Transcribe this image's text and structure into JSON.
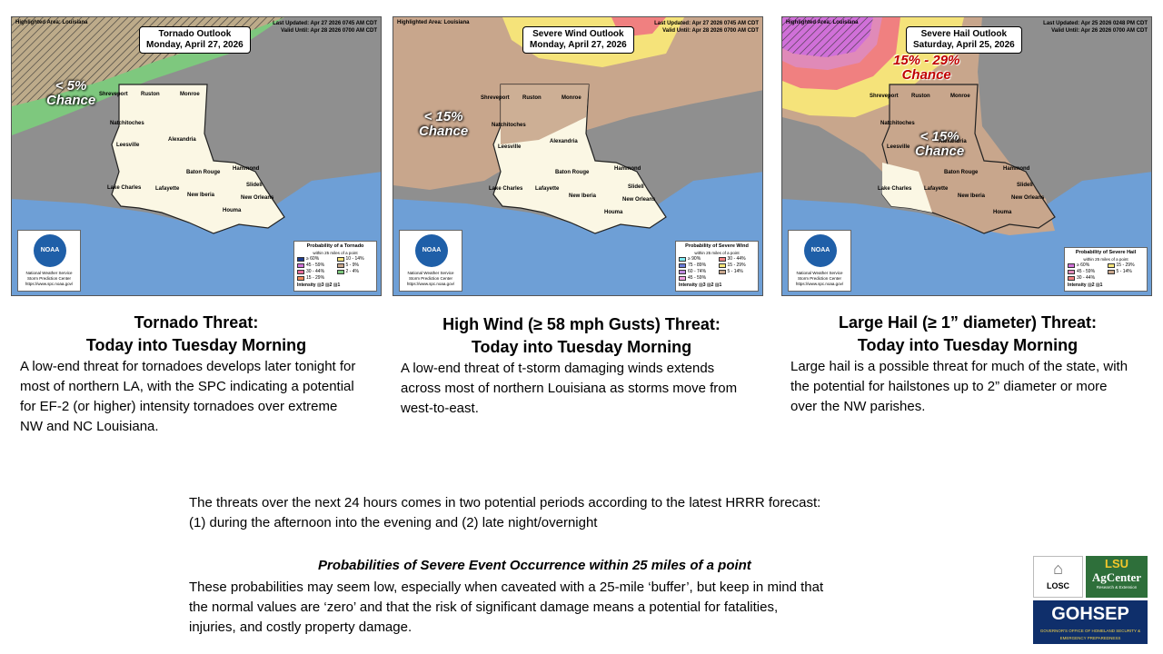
{
  "maps": {
    "tornado": {
      "highlighted": "Highlighted Area: Louisiana",
      "updated": "Last Updated: Apr 27 2026 0745 AM CDT",
      "valid": "Valid Until: Apr 28 2026 0700 AM CDT",
      "title1": "Tornado Outlook",
      "title2": "Monday, April 27, 2026",
      "chance1": "< 5%",
      "chance2": "Chance",
      "legend_title": "Probability of a Tornado",
      "legend_sub": "within 25 miles of a point",
      "legend_items": [
        "≥ 60%",
        "10 - 14%",
        "45 - 59%",
        "5 - 9%",
        "30 - 44%",
        "2 - 4%",
        "15 - 29%"
      ],
      "intensity_label": "Intensity",
      "intensity_values": [
        "1",
        "2",
        "3"
      ]
    },
    "wind": {
      "highlighted": "Highlighted Area: Louisiana",
      "updated": "Last Updated: Apr 27 2026 0745 AM CDT",
      "valid": "Valid Until: Apr 28 2026 0700 AM CDT",
      "title1": "Severe Wind Outlook",
      "title2": "Monday, April 27, 2026",
      "chance1": "< 15%",
      "chance2": "Chance",
      "legend_title": "Probability of Severe Wind",
      "legend_sub": "within 25 miles of a point",
      "legend_items": [
        "≥ 90%",
        "30 - 44%",
        "75 - 89%",
        "15 - 29%",
        "60 - 74%",
        "5 - 14%",
        "45 - 59%"
      ],
      "intensity_label": "Intensity",
      "intensity_values": [
        "1",
        "2",
        "3"
      ]
    },
    "hail": {
      "highlighted": "Highlighted Area: Louisiana",
      "updated": "Last Updated: Apr 25 2026 0248 PM CDT",
      "valid": "Valid Until: Apr 26 2026 0700 AM CDT",
      "title1": "Severe Hail Outlook",
      "title2": "Saturday, April 25, 2026",
      "chance_high1": "15% - 29%",
      "chance_high2": "Chance",
      "chance1": "< 15%",
      "chance2": "Chance",
      "legend_title": "Probability of Severe Hail",
      "legend_sub": "within 25 miles of a point",
      "legend_items": [
        "≥ 60%",
        "15 - 29%",
        "45 - 59%",
        "5 - 14%",
        "30 - 44%"
      ],
      "intensity_label": "Intensity",
      "intensity_values": [
        "1",
        "2"
      ]
    },
    "cities": {
      "shreveport": "Shreveport",
      "ruston": "Ruston",
      "monroe": "Monroe",
      "natchitoches": "Natchitoches",
      "leesville": "Leesville",
      "alexandria": "Alexandria",
      "batonrouge": "Baton Rouge",
      "hammond": "Hammond",
      "lakecharles": "Lake Charles",
      "lafayette": "Lafayette",
      "newiberia": "New Iberia",
      "slidell": "Slidell",
      "neworleans": "New Orleans",
      "houma": "Houma"
    },
    "noaa": "NOAA",
    "nws1": "National Weather Service",
    "nws2": "Storm Prediction Center",
    "nws3": "https://www.spc.noaa.gov/"
  },
  "sections": [
    {
      "heading1": "Tornado Threat:",
      "heading2": "Today into Tuesday Morning",
      "text": "A low-end threat for tornadoes develops later tonight for most of northern LA, with the SPC indicating a  potential for EF-2 (or higher) intensity tornadoes over extreme NW and NC Louisiana."
    },
    {
      "heading1": "High Wind (≥ 58 mph Gusts) Threat:",
      "heading2": "Today into Tuesday Morning",
      "text": "A low-end threat of t-storm damaging winds extends across most of northern Louisiana as storms move from west-to-east."
    },
    {
      "heading1": "Large Hail (≥ 1” diameter) Threat:",
      "heading2": "Today into Tuesday Morning",
      "text": "Large hail is a possible threat for much of the state, with the potential for hailstones up to 2” diameter or more over the NW parishes."
    }
  ],
  "summary": {
    "line1": "The threats over the next 24 hours comes in two potential periods according to the latest HRRR forecast:",
    "line2": "(1) during the afternoon into the evening and (2) late night/overnight",
    "prob_title": "Probabilities of Severe Event Occurrence within 25 miles of a point",
    "prob_line1": "These probabilities may seem low, especially when caveated with a 25-mile ‘buffer’, but keep in mind that",
    "prob_line2": "the normal values are ‘zero’ and that the risk of significant damage means a potential for fatalities,",
    "prob_line3": "injuries, and costly property damage."
  },
  "logos": {
    "losc": "LOSC",
    "lsu_top": "LSU",
    "lsu_mid": "AgCenter",
    "lsu_sub": "Research & Extension",
    "gohsep": "GOHSEP",
    "gohsep_sub": "GOVERNOR'S OFFICE OF HOMELAND SECURITY & EMERGENCY PREPAREDNESS"
  },
  "colors": {
    "ocean": "#6e9fd6",
    "land": "#8f8f8f",
    "louisiana": "#fbf7e4",
    "tornado_green": "#7ec87e",
    "wind_tan": "#c8a68c",
    "wind_yellow": "#f5e37a",
    "hail_pink": "#e08ab8",
    "hail_magenta": "#d070d8"
  }
}
